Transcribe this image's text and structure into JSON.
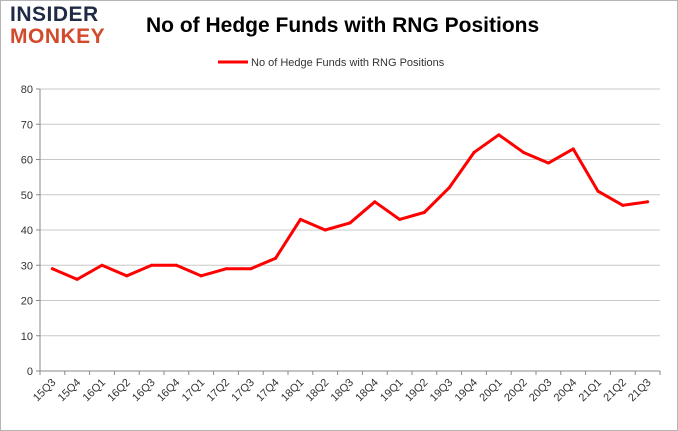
{
  "logo": {
    "line1": "INSIDER",
    "line2": "MONKEY"
  },
  "chart_data": {
    "type": "line",
    "title": "No of Hedge Funds with RNG Positions",
    "xlabel": "",
    "ylabel": "",
    "ylim": [
      0,
      80
    ],
    "yticks": [
      0,
      10,
      20,
      30,
      40,
      50,
      60,
      70,
      80
    ],
    "grid": true,
    "legend_position": "top-center",
    "categories": [
      "15Q3",
      "15Q4",
      "16Q1",
      "16Q2",
      "16Q3",
      "16Q4",
      "17Q1",
      "17Q2",
      "17Q3",
      "17Q4",
      "18Q1",
      "18Q2",
      "18Q3",
      "18Q4",
      "19Q1",
      "19Q2",
      "19Q3",
      "19Q4",
      "20Q1",
      "20Q2",
      "20Q3",
      "20Q4",
      "21Q1",
      "21Q2",
      "21Q3"
    ],
    "series": [
      {
        "name": "No of Hedge Funds with RNG Positions",
        "color": "#ff0000",
        "values": [
          29,
          26,
          30,
          27,
          30,
          30,
          27,
          29,
          29,
          32,
          43,
          40,
          42,
          48,
          43,
          45,
          52,
          62,
          67,
          62,
          59,
          63,
          51,
          47,
          48
        ]
      }
    ]
  }
}
